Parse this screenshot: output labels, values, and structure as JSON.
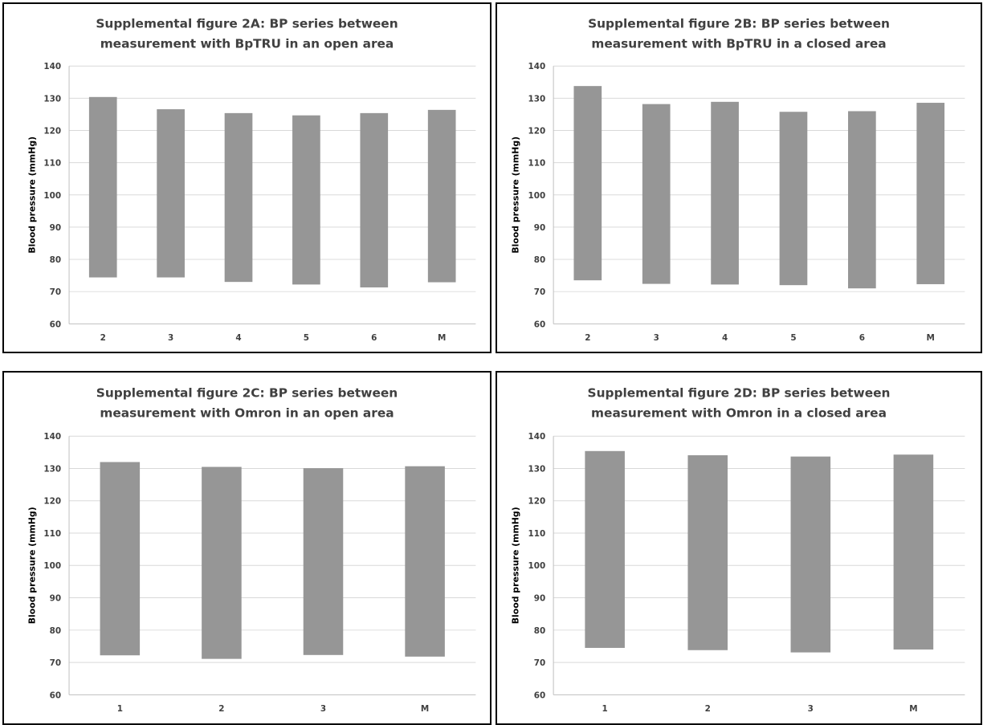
{
  "colors": {
    "bar": "#969696",
    "grid": "#d9d9d9",
    "text": "#404040",
    "border": "#000000"
  },
  "chart_data": [
    {
      "type": "bar",
      "title_lines": [
        "Supplemental figure 2A: BP series between",
        "measurement with BpTRU in an open area"
      ],
      "ylabel": "Blood pressure (mmHg)",
      "xlabel": "",
      "ylim": [
        60,
        140
      ],
      "yticks": [
        60,
        70,
        80,
        90,
        100,
        110,
        120,
        130,
        140
      ],
      "grid": true,
      "categories": [
        "2",
        "3",
        "4",
        "5",
        "6",
        "M"
      ],
      "low": [
        74.4,
        74.4,
        73.0,
        72.2,
        71.3,
        72.9
      ],
      "high": [
        130.4,
        126.6,
        125.4,
        124.7,
        125.4,
        126.4
      ]
    },
    {
      "type": "bar",
      "title_lines": [
        "Supplemental figure 2B: BP series between",
        "measurement with BpTRU in a closed area"
      ],
      "ylabel": "Blood pressure (mmHg)",
      "xlabel": "",
      "ylim": [
        60,
        140
      ],
      "yticks": [
        60,
        70,
        80,
        90,
        100,
        110,
        120,
        130,
        140
      ],
      "grid": true,
      "categories": [
        "2",
        "3",
        "4",
        "5",
        "6",
        "M"
      ],
      "low": [
        73.5,
        72.4,
        72.2,
        72.0,
        71.0,
        72.3
      ],
      "high": [
        133.8,
        128.2,
        128.9,
        125.8,
        126.0,
        128.6
      ]
    },
    {
      "type": "bar",
      "title_lines": [
        "Supplemental figure 2C: BP series between",
        "measurement with Omron in an open area"
      ],
      "ylabel": "Blood pressure (mmHg)",
      "xlabel": "",
      "ylim": [
        60,
        140
      ],
      "yticks": [
        60,
        70,
        80,
        90,
        100,
        110,
        120,
        130,
        140
      ],
      "grid": true,
      "categories": [
        "1",
        "2",
        "3",
        "M"
      ],
      "low": [
        72.2,
        71.1,
        72.3,
        71.8
      ],
      "high": [
        132.0,
        130.5,
        130.1,
        130.7
      ]
    },
    {
      "type": "bar",
      "title_lines": [
        "Supplemental figure 2D: BP series between",
        "measurement with Omron in a closed area"
      ],
      "ylabel": "Blood pressure (mmHg)",
      "xlabel": "",
      "ylim": [
        60,
        140
      ],
      "yticks": [
        60,
        70,
        80,
        90,
        100,
        110,
        120,
        130,
        140
      ],
      "grid": true,
      "categories": [
        "1",
        "2",
        "3",
        "M"
      ],
      "low": [
        74.5,
        73.8,
        73.1,
        74.0
      ],
      "high": [
        135.4,
        134.1,
        133.7,
        134.3
      ]
    }
  ]
}
